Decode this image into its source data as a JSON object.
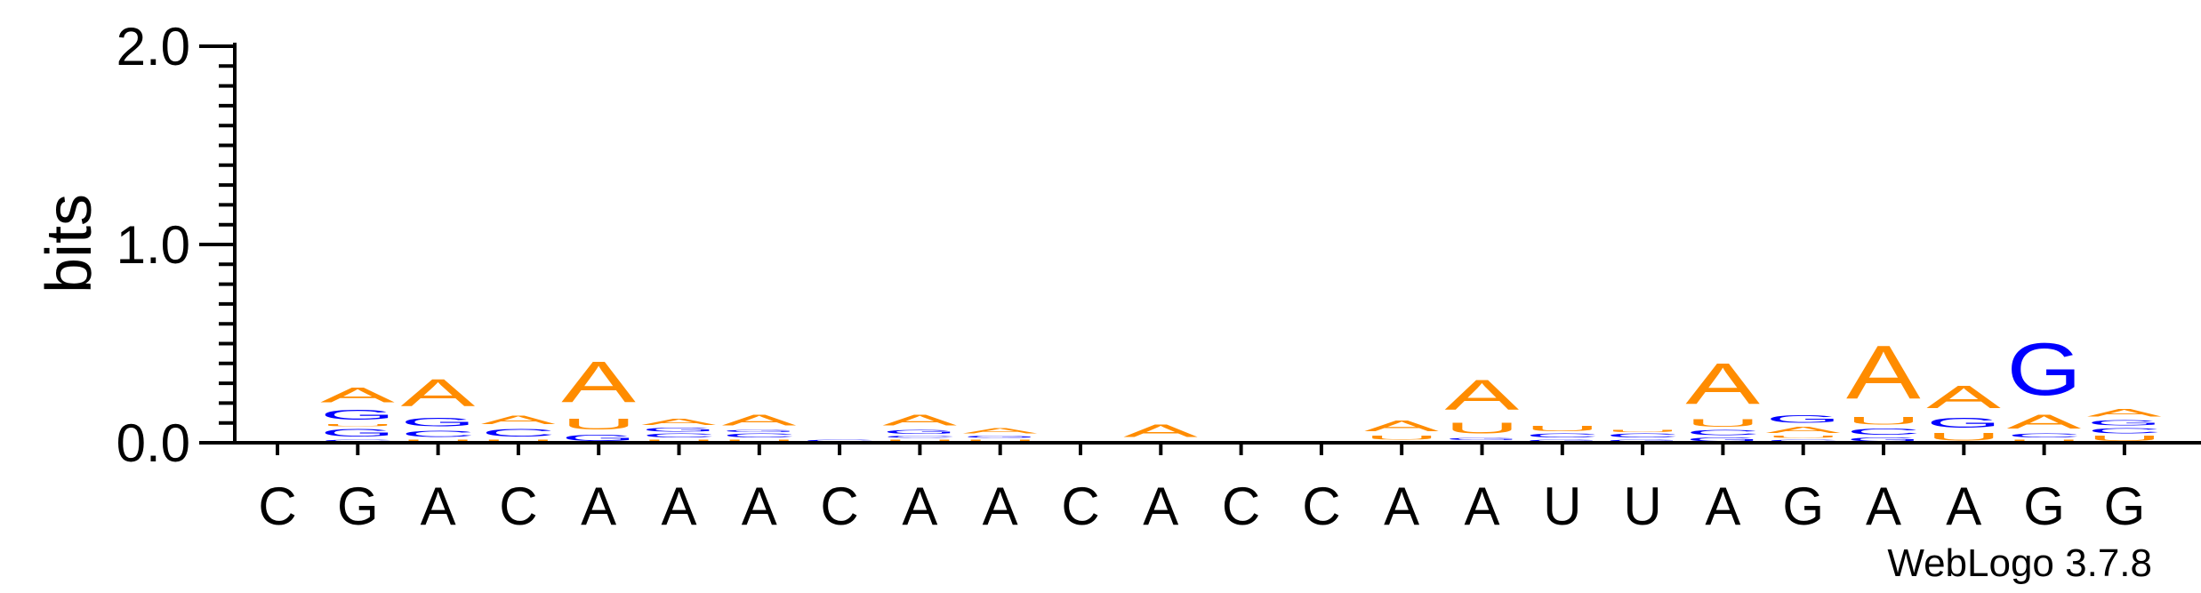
{
  "chart_data": {
    "type": "sequence-logo",
    "ylabel": "bits",
    "ylim": [
      0,
      2
    ],
    "yticks": [
      {
        "value": 0,
        "label": "0.0"
      },
      {
        "value": 1,
        "label": "1.0"
      },
      {
        "value": 2,
        "label": "2.0"
      }
    ],
    "colors": {
      "A": "#ff8c00",
      "U": "#ff8c00",
      "G": "#0000ff",
      "C": "#0000ff"
    },
    "positions": [
      {
        "label": "C",
        "letters": []
      },
      {
        "label": "G",
        "letters": [
          {
            "l": "C",
            "h": 0.02
          },
          {
            "l": "G",
            "h": 0.06
          },
          {
            "l": "U",
            "h": 0.02
          },
          {
            "l": "G",
            "h": 0.08
          },
          {
            "l": "A",
            "h": 0.12
          }
        ]
      },
      {
        "label": "A",
        "letters": [
          {
            "l": "U",
            "h": 0.02
          },
          {
            "l": "C",
            "h": 0.05
          },
          {
            "l": "G",
            "h": 0.07
          },
          {
            "l": "A",
            "h": 0.22
          }
        ]
      },
      {
        "label": "C",
        "letters": [
          {
            "l": "U",
            "h": 0.02
          },
          {
            "l": "C",
            "h": 0.06
          },
          {
            "l": "A",
            "h": 0.07
          }
        ]
      },
      {
        "label": "A",
        "letters": [
          {
            "l": "G",
            "h": 0.05
          },
          {
            "l": "U",
            "h": 0.09
          },
          {
            "l": "A",
            "h": 0.33
          }
        ]
      },
      {
        "label": "A",
        "letters": [
          {
            "l": "U",
            "h": 0.02
          },
          {
            "l": "C",
            "h": 0.03
          },
          {
            "l": "G",
            "h": 0.03
          },
          {
            "l": "A",
            "h": 0.05
          }
        ]
      },
      {
        "label": "A",
        "letters": [
          {
            "l": "U",
            "h": 0.02
          },
          {
            "l": "C",
            "h": 0.03
          },
          {
            "l": "G",
            "h": 0.02
          },
          {
            "l": "A",
            "h": 0.09
          }
        ]
      },
      {
        "label": "C",
        "letters": [
          {
            "l": "C",
            "h": 0.02
          }
        ]
      },
      {
        "label": "A",
        "letters": [
          {
            "l": "U",
            "h": 0.02
          },
          {
            "l": "C",
            "h": 0.02
          },
          {
            "l": "G",
            "h": 0.03
          },
          {
            "l": "A",
            "h": 0.09
          }
        ]
      },
      {
        "label": "A",
        "letters": [
          {
            "l": "U",
            "h": 0.02
          },
          {
            "l": "G",
            "h": 0.02
          },
          {
            "l": "A",
            "h": 0.04
          }
        ]
      },
      {
        "label": "C",
        "letters": []
      },
      {
        "label": "A",
        "letters": [
          {
            "l": "C",
            "h": 0.01
          },
          {
            "l": "A",
            "h": 0.1
          }
        ]
      },
      {
        "label": "C",
        "letters": []
      },
      {
        "label": "C",
        "letters": []
      },
      {
        "label": "A",
        "letters": [
          {
            "l": "C",
            "h": 0.01
          },
          {
            "l": "U",
            "h": 0.03
          },
          {
            "l": "A",
            "h": 0.09
          }
        ]
      },
      {
        "label": "A",
        "letters": [
          {
            "l": "C",
            "h": 0.01
          },
          {
            "l": "G",
            "h": 0.02
          },
          {
            "l": "U",
            "h": 0.09
          },
          {
            "l": "A",
            "h": 0.24
          }
        ]
      },
      {
        "label": "U",
        "letters": [
          {
            "l": "G",
            "h": 0.02
          },
          {
            "l": "C",
            "h": 0.03
          },
          {
            "l": "U",
            "h": 0.04
          }
        ]
      },
      {
        "label": "U",
        "letters": [
          {
            "l": "G",
            "h": 0.02
          },
          {
            "l": "C",
            "h": 0.03
          },
          {
            "l": "U",
            "h": 0.02
          }
        ]
      },
      {
        "label": "A",
        "letters": [
          {
            "l": "G",
            "h": 0.03
          },
          {
            "l": "C",
            "h": 0.04
          },
          {
            "l": "U",
            "h": 0.06
          },
          {
            "l": "A",
            "h": 0.33
          }
        ]
      },
      {
        "label": "G",
        "letters": [
          {
            "l": "C",
            "h": 0.02
          },
          {
            "l": "U",
            "h": 0.02
          },
          {
            "l": "A",
            "h": 0.05
          },
          {
            "l": "G",
            "h": 0.06
          }
        ]
      },
      {
        "label": "A",
        "letters": [
          {
            "l": "G",
            "h": 0.03
          },
          {
            "l": "C",
            "h": 0.05
          },
          {
            "l": "U",
            "h": 0.06
          },
          {
            "l": "A",
            "h": 0.43
          }
        ]
      },
      {
        "label": "A",
        "letters": [
          {
            "l": "U",
            "h": 0.06
          },
          {
            "l": "G",
            "h": 0.08
          },
          {
            "l": "A",
            "h": 0.18
          }
        ]
      },
      {
        "label": "G",
        "letters": [
          {
            "l": "U",
            "h": 0.02
          },
          {
            "l": "C",
            "h": 0.03
          },
          {
            "l": "A",
            "h": 0.11
          },
          {
            "l": "G",
            "h": 0.42
          }
        ]
      },
      {
        "label": "G",
        "letters": [
          {
            "l": "U",
            "h": 0.04
          },
          {
            "l": "C",
            "h": 0.04
          },
          {
            "l": "G",
            "h": 0.04
          },
          {
            "l": "A",
            "h": 0.06
          }
        ]
      }
    ]
  },
  "credit": "WebLogo 3.7.8"
}
